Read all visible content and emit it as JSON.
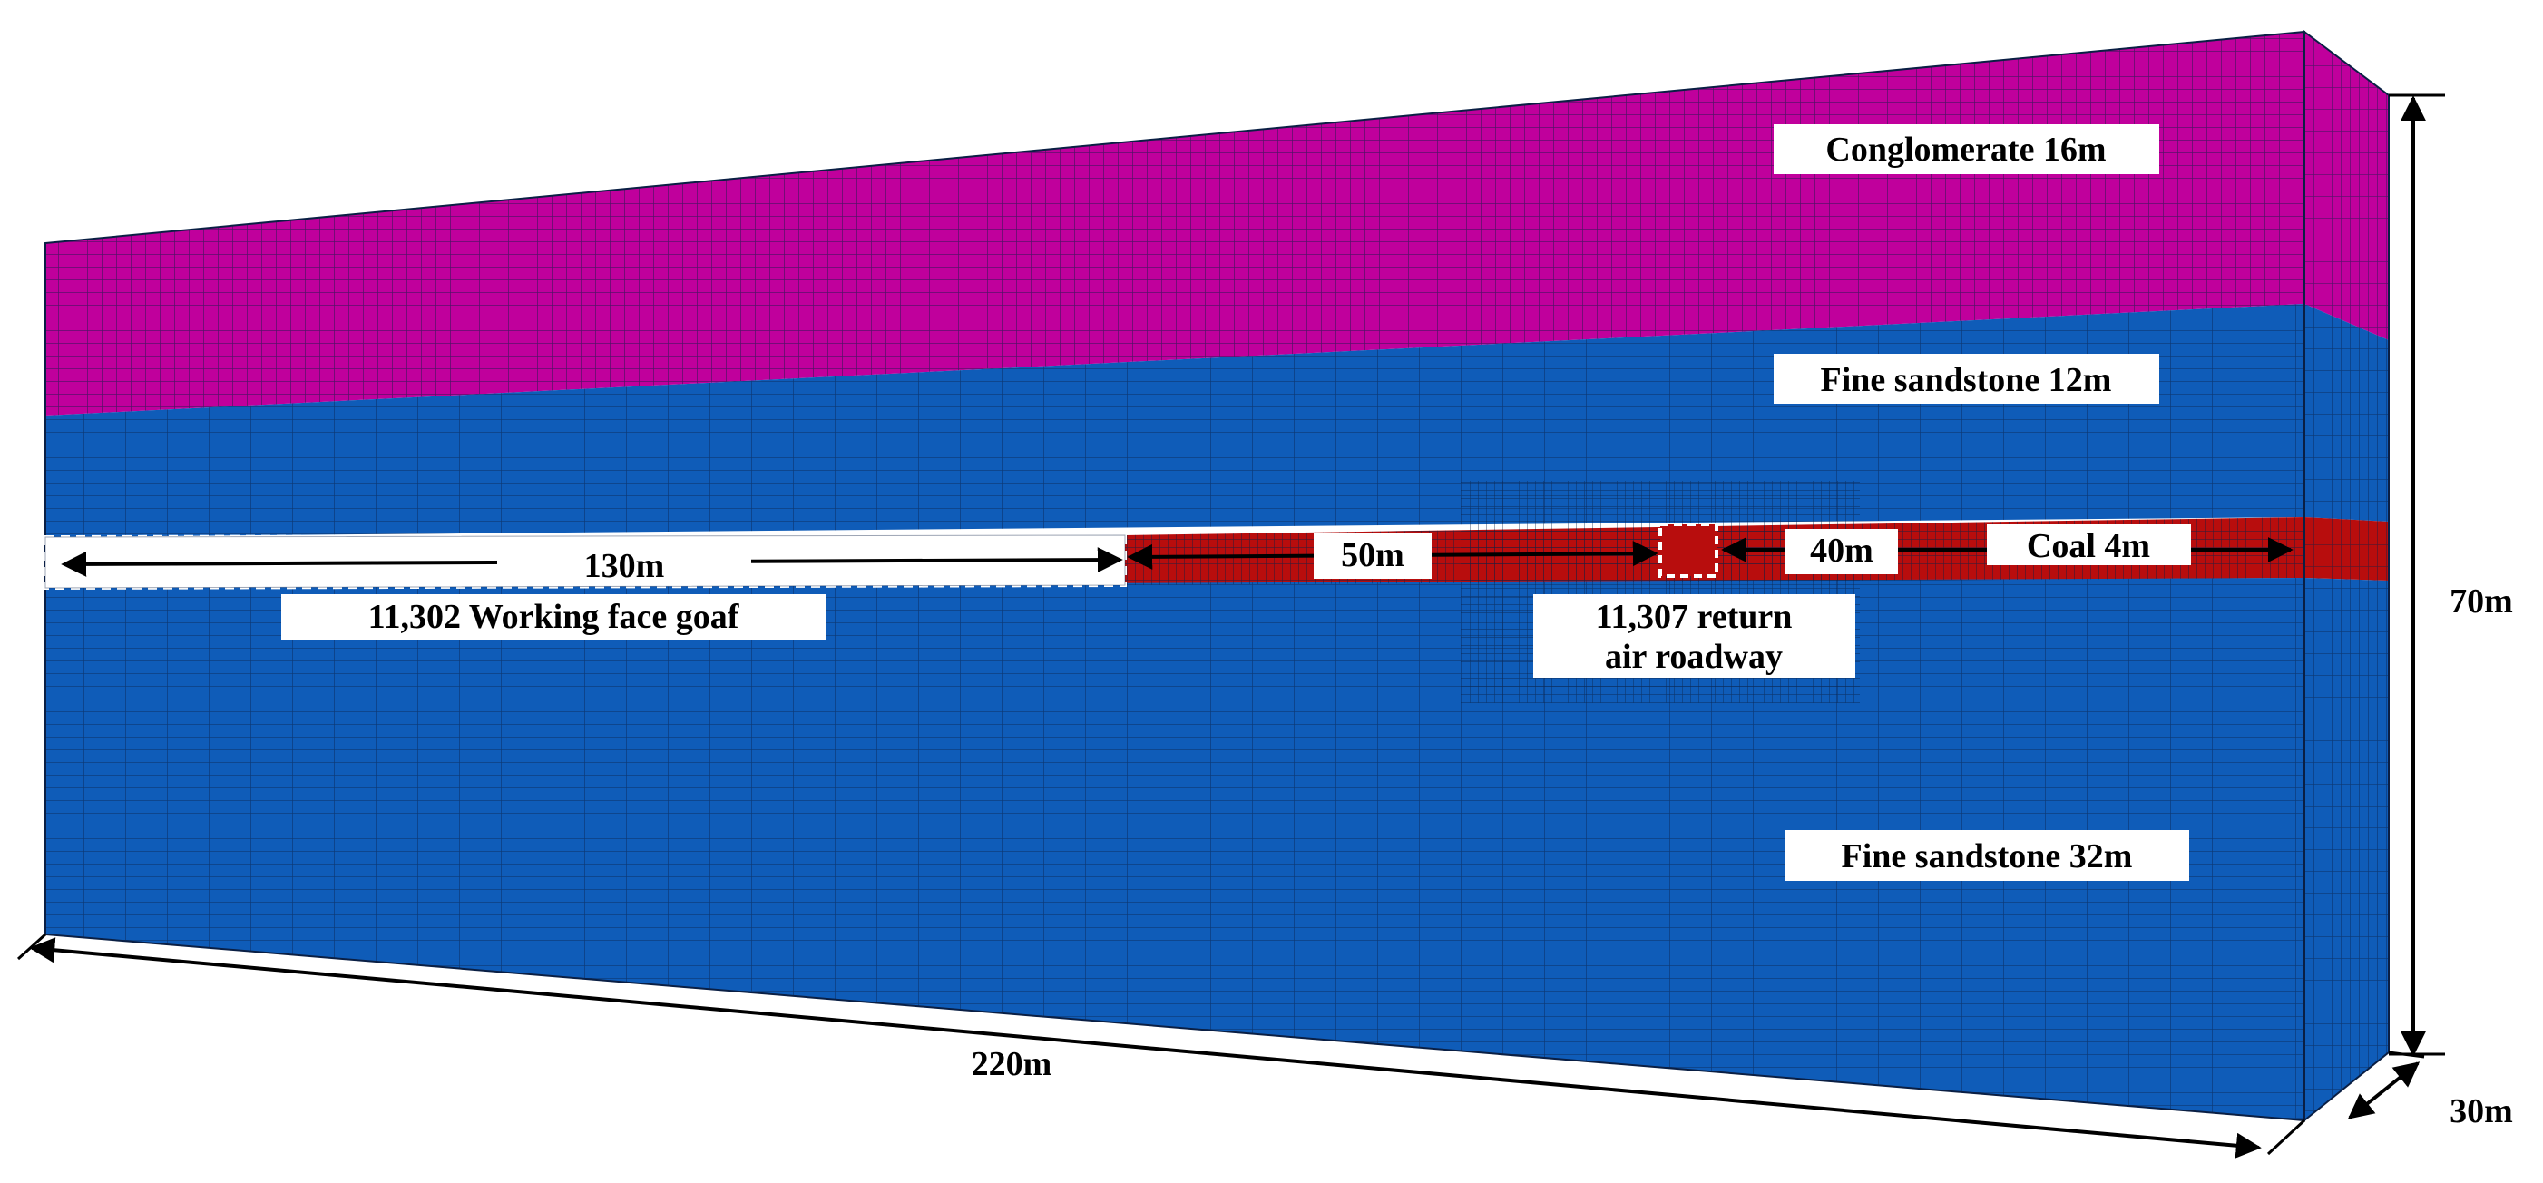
{
  "diagram": {
    "layers": [
      {
        "id": "conglomerate",
        "label": "Conglomerate  16m",
        "color": "#c0009c"
      },
      {
        "id": "fine-sandstone-upper",
        "label": "Fine sandstone  12m",
        "color": "#0f5cb8"
      },
      {
        "id": "coal",
        "label": "Coal  4m",
        "color": "#b80d0d"
      },
      {
        "id": "fine-sandstone-lower",
        "label": "Fine sandstone  32m",
        "color": "#0f5cb8"
      }
    ],
    "goaf_label": "11,302 Working face  goaf",
    "roadway_label_line1": "11,307 return",
    "roadway_label_line2": "air roadway",
    "dimensions": {
      "goaf_length": "130m",
      "pillar_width": "50m",
      "coal_ahead": "40m",
      "height": "70m",
      "length": "220m",
      "width": "30m"
    }
  }
}
